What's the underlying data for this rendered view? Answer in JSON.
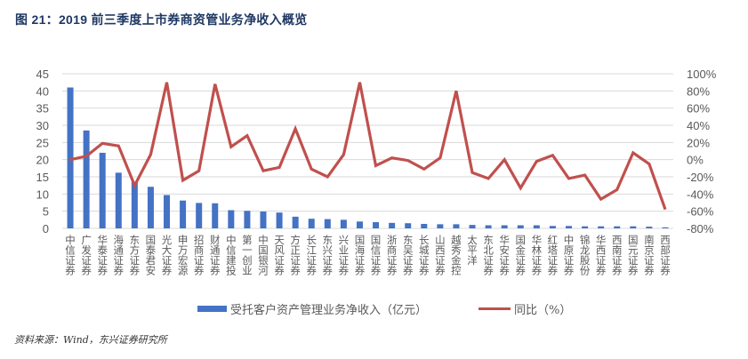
{
  "figure_title": "图 21：2019 前三季度上市券商资管业务净收入概览",
  "source": "资料来源：Wind，东兴证券研究所",
  "legend": {
    "bar_label": "受托客户资产管理业务净收入（亿元）",
    "line_label": "同比（%）"
  },
  "colors": {
    "bar": "#4472c4",
    "line": "#c0504d",
    "title": "#1f3864",
    "grid": "#d9d9d9",
    "axis_text": "#595959"
  },
  "chart_data": {
    "type": "bar+line",
    "title": "2019前三季度上市券商资管业务净收入概览",
    "categories": [
      "中信证券",
      "广发证券",
      "华泰证券",
      "海通证券",
      "东方证券",
      "国泰君安",
      "光大证券",
      "申万宏源",
      "招商证券",
      "财通证券",
      "中信建投",
      "第一创业",
      "中国银河",
      "天风证券",
      "方正证券",
      "长江证券",
      "东兴证券",
      "兴业证券",
      "国海证券",
      "国信证券",
      "浙商证券",
      "东吴证券",
      "长城证券",
      "山西证券",
      "越秀金控",
      "太平洋",
      "东北证券",
      "华安证券",
      "国金证券",
      "华林证券",
      "红塔证券",
      "中原证券",
      "锦龙股份",
      "华西证券",
      "西南证券",
      "国元证券",
      "南京证券",
      "西部证券"
    ],
    "series": [
      {
        "name": "受托客户资产管理业务净收入（亿元）",
        "type": "bar",
        "axis": "left",
        "values": [
          41.0,
          28.5,
          22.0,
          16.2,
          13.5,
          12.1,
          9.7,
          8.1,
          7.4,
          7.3,
          5.3,
          5.1,
          4.9,
          4.6,
          3.4,
          2.8,
          2.7,
          2.5,
          2.0,
          1.8,
          1.6,
          1.5,
          1.3,
          1.2,
          1.2,
          1.0,
          0.9,
          0.9,
          0.9,
          0.9,
          0.7,
          0.7,
          0.6,
          0.6,
          0.6,
          0.6,
          0.5,
          0.3
        ]
      },
      {
        "name": "同比（%）",
        "type": "line",
        "axis": "right",
        "values": [
          0,
          4,
          19,
          16,
          -30,
          6,
          90,
          -24,
          -13,
          88,
          15,
          28,
          -13,
          -9,
          36,
          -11,
          -20,
          6,
          90,
          -7,
          2,
          -1,
          -11,
          2,
          80,
          -15,
          -22,
          0,
          -33,
          -2,
          5,
          -22,
          -18,
          -46,
          -35,
          8,
          -5,
          -58
        ]
      }
    ],
    "left_axis": {
      "ylim": [
        0,
        45
      ],
      "ticks": [
        "0",
        "5",
        "10",
        "15",
        "20",
        "25",
        "30",
        "35",
        "40",
        "45"
      ]
    },
    "right_axis": {
      "ylim": [
        -80,
        100
      ],
      "ticks": [
        "-80%",
        "-60%",
        "-40%",
        "-20%",
        "0%",
        "20%",
        "40%",
        "60%",
        "80%",
        "100%"
      ]
    },
    "grid": true,
    "legend_position": "bottom"
  }
}
